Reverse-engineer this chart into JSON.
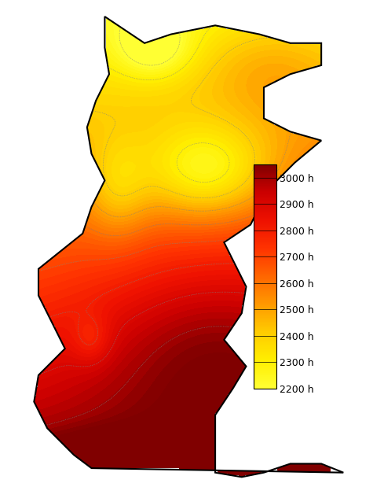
{
  "title": "",
  "colorbar_labels": [
    "3000 h",
    "2900 h",
    "2800 h",
    "2700 h",
    "2600 h",
    "2500 h",
    "2400 h",
    "2300 h",
    "2200 h"
  ],
  "colorbar_values": [
    3000,
    2900,
    2800,
    2700,
    2600,
    2500,
    2400,
    2300,
    2200
  ],
  "vmin": 2200,
  "vmax": 3050,
  "contour_levels": [
    2200,
    2300,
    2400,
    2500,
    2600,
    2700,
    2800,
    2900,
    3000
  ],
  "colors": [
    "#ffff00",
    "#ffee00",
    "#ffcc00",
    "#ffaa00",
    "#ff8800",
    "#ff6600",
    "#ff3300",
    "#cc0000",
    "#880000"
  ],
  "background": "#ffffff",
  "figsize": [
    4.75,
    6.33
  ],
  "dpi": 100
}
